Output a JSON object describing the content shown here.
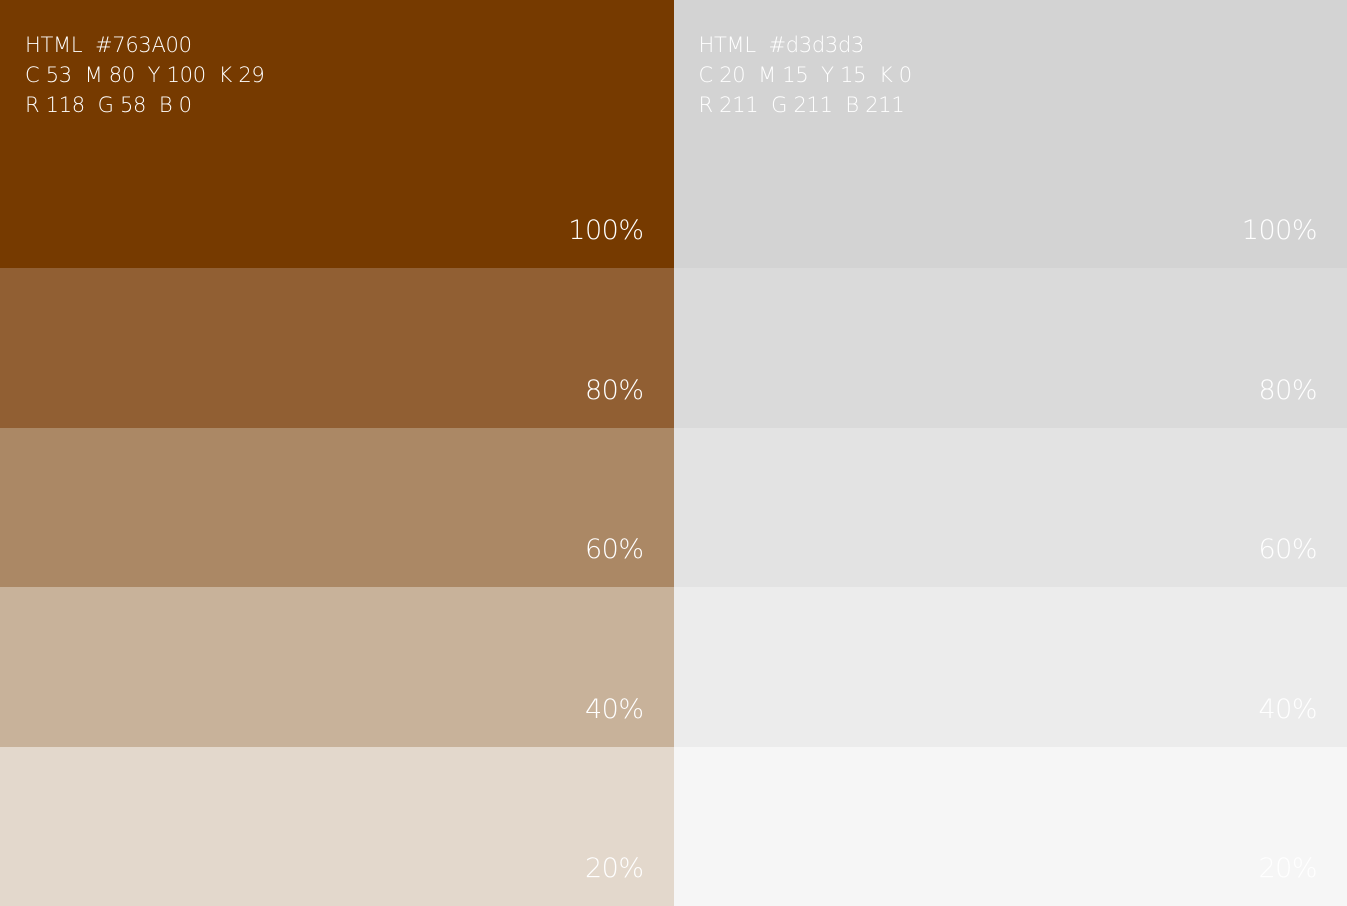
{
  "palettes": [
    {
      "html_label": "HTML  #763A00",
      "cmyk_label": "C 53  M 80  Y 100  K 29",
      "rgb_label": "R 118  G 58  B 0",
      "swatches": [
        {
          "percent_label": "100%",
          "color": "#763A00"
        },
        {
          "percent_label": "80%",
          "color": "#915F33"
        },
        {
          "percent_label": "60%",
          "color": "#AB8865"
        },
        {
          "percent_label": "40%",
          "color": "#C8B29A"
        },
        {
          "percent_label": "20%",
          "color": "#E3D8CC"
        }
      ]
    },
    {
      "html_label": "HTML  #d3d3d3",
      "cmyk_label": "C 20  M 15  Y 15  K 0",
      "rgb_label": "R 211  G 211  B 211",
      "swatches": [
        {
          "percent_label": "100%",
          "color": "#D3D3D3"
        },
        {
          "percent_label": "80%",
          "color": "#DADADA"
        },
        {
          "percent_label": "60%",
          "color": "#E3E3E3"
        },
        {
          "percent_label": "40%",
          "color": "#ECECEC"
        },
        {
          "percent_label": "20%",
          "color": "#F6F6F6"
        }
      ]
    }
  ]
}
